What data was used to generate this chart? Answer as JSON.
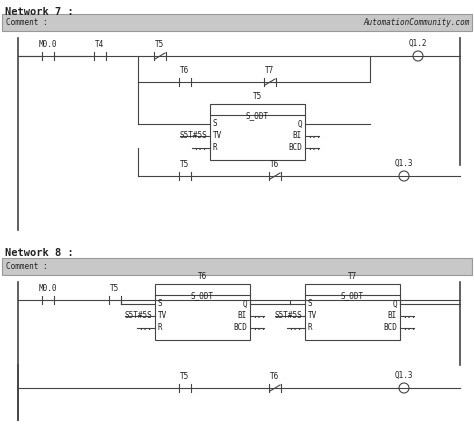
{
  "bg_color": "#ffffff",
  "panel_color": "#c8c8c8",
  "panel_border": "#888888",
  "text_color": "#222222",
  "line_color": "#444444",
  "figsize": [
    4.74,
    4.41
  ],
  "dpi": 100,
  "network7_title": "Network 7 :",
  "network8_title": "Network 8 :",
  "comment_text": "Comment :",
  "watermark": "AutomationCommunity.com",
  "font_mono": "monospace",
  "fs_title": 7.5,
  "fs_label": 6.0,
  "fs_small": 5.5
}
